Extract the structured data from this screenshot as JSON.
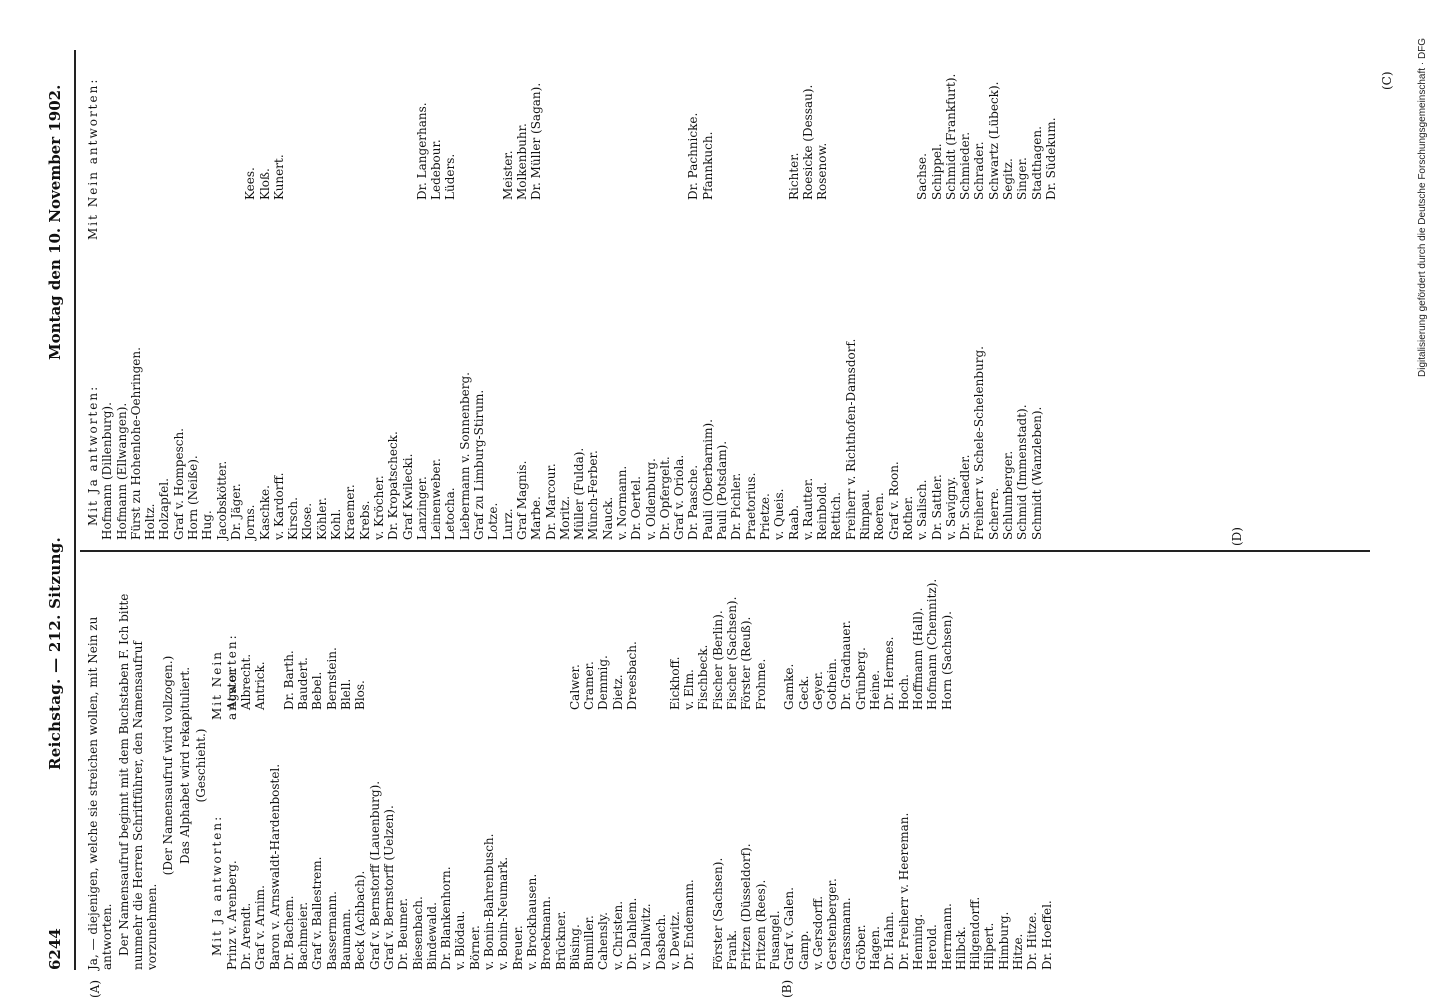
{
  "header": {
    "page_number": "6244",
    "title": "Reichstag. — 212. Sitzung.",
    "date": "Montag den 10. November 1902."
  },
  "markers": {
    "A": "(A)",
    "B": "(B)",
    "C": "(C)",
    "D": "(D)"
  },
  "left": {
    "intro_1": "Ja, — diejenigen, welche sie streichen wollen, mit Nein zu antworten.",
    "intro_2": "Der Namensaufruf beginnt mit dem Buchstaben F. Ich bitte nunmehr die Herren Schriftführer, den Namensaufruf vorzunehmen.",
    "intro_3": "(Der Namensaufruf wird vollzogen.)",
    "intro_4": "Das Alphabet wird rekapituliert.",
    "intro_5": "(Geschieht.)",
    "heading_ja": "Mit Ja antworten:",
    "heading_nein": "Mit Nein antworten:",
    "rows": [
      [
        "Prinz v. Arenberg.",
        "",
        "Agster."
      ],
      [
        "Dr. Arendt.",
        "",
        "Albrecht."
      ],
      [
        "Graf v. Arnim.",
        "",
        "Antrick."
      ],
      [
        "Baron v. Arnswaldt-Hardenbostel.",
        "",
        ""
      ],
      [
        "Dr. Bachem.",
        "",
        "Dr. Barth."
      ],
      [
        "Bachmeier.",
        "",
        "Baudert."
      ],
      [
        "Graf v. Ballestrem.",
        "",
        "Bebel."
      ],
      [
        "Bassermann.",
        "",
        "Bernstein."
      ],
      [
        "Baumann.",
        "",
        "Blell."
      ],
      [
        "Beck (Achbach).",
        "",
        "Blos."
      ],
      [
        "Graf v. Bernstorff (Lauenburg).",
        "",
        ""
      ],
      [
        "Graf v. Bernstorff (Uelzen).",
        "",
        ""
      ],
      [
        "Dr. Beumer.",
        "",
        ""
      ],
      [
        "Biesenbach.",
        "",
        ""
      ],
      [
        "Bindewald.",
        "",
        ""
      ],
      [
        "Dr. Blankenhorn.",
        "",
        ""
      ],
      [
        "v. Blödau.",
        "",
        ""
      ],
      [
        "Börner.",
        "",
        ""
      ],
      [
        "v. Bonin-Bahrenbusch.",
        "",
        ""
      ],
      [
        "v. Bonin-Neumark.",
        "",
        ""
      ],
      [
        "Breuer.",
        "",
        ""
      ],
      [
        "v. Brockhausen.",
        "",
        ""
      ],
      [
        "Broekmann.",
        "",
        ""
      ],
      [
        "Brückner.",
        "",
        ""
      ],
      [
        "Büsing.",
        "",
        "Calwer."
      ],
      [
        "Bumiller.",
        "",
        "Cramer."
      ],
      [
        "Cahensly.",
        "",
        "Demmig."
      ],
      [
        "v. Christen.",
        "",
        "Dietz."
      ],
      [
        "Dr. Dahlem.",
        "",
        "Dreesbach."
      ],
      [
        "v. Dallwitz.",
        "",
        ""
      ],
      [
        "Dasbach.",
        "",
        ""
      ],
      [
        "v. Dewitz.",
        "",
        "Eickhoff."
      ],
      [
        "Dr. Endemann.",
        "",
        "v. Elm."
      ],
      [
        "",
        "",
        "Fischbeck."
      ],
      [
        "Förster (Sachsen).",
        "",
        "Fischer (Berlin)."
      ],
      [
        "Frank.",
        "",
        "Fischer (Sachsen)."
      ],
      [
        "Fritzen (Düsseldorf).",
        "",
        "Förster (Reuß)."
      ],
      [
        "Fritzen (Rees).",
        "",
        "Frohme."
      ],
      [
        "Fusangel.",
        "",
        ""
      ],
      [
        "Graf v. Galen.",
        "",
        "Gamke."
      ],
      [
        "Gamp.",
        "",
        "Geck."
      ],
      [
        "v. Gersdorff.",
        "",
        "Geyer."
      ],
      [
        "Gerstenberger.",
        "",
        "Gothein."
      ],
      [
        "Grassmann.",
        "",
        "Dr. Gradnauer."
      ],
      [
        "Gröber.",
        "",
        "Grünberg."
      ],
      [
        "Hagen.",
        "",
        "Heine."
      ],
      [
        "Dr. Hahn.",
        "",
        "Dr. Hermes."
      ],
      [
        "Dr. Freiherr v. Heereman.",
        "",
        "Hoch."
      ],
      [
        "Henning.",
        "",
        "Hoffmann (Hall)."
      ],
      [
        "Herold.",
        "",
        "Hofmann (Chemnitz)."
      ],
      [
        "Herrmann.",
        "",
        "Horn (Sachsen)."
      ],
      [
        "Hilbck.",
        "",
        ""
      ],
      [
        "Hilgendorff.",
        "",
        ""
      ],
      [
        "Hilpert.",
        "",
        ""
      ],
      [
        "Himburg.",
        "",
        ""
      ],
      [
        "Hitze.",
        "",
        ""
      ],
      [
        "Dr. Hitze.",
        "",
        ""
      ],
      [
        "Dr. Hoeffel.",
        "",
        ""
      ]
    ]
  },
  "right": {
    "heading_ja": "Mit Ja antworten:",
    "heading_nein": "Mit Nein antworten:",
    "rows": [
      [
        "Hofmann (Dillenburg).",
        "",
        ""
      ],
      [
        "Hofmann (Ellwangen).",
        "",
        ""
      ],
      [
        "Fürst zu Hohenlohe-Oehringen.",
        "",
        ""
      ],
      [
        "Holtz.",
        "",
        ""
      ],
      [
        "Holzapfel.",
        "",
        ""
      ],
      [
        "Graf v. Hompesch.",
        "",
        ""
      ],
      [
        "Horn (Neiße).",
        "",
        ""
      ],
      [
        "Hug.",
        "",
        ""
      ],
      [
        "Jacobskötter.",
        "",
        ""
      ],
      [
        "Dr. Jäger.",
        "",
        ""
      ],
      [
        "Jorns.",
        "",
        "Kees."
      ],
      [
        "Kaschke.",
        "",
        "Kloß."
      ],
      [
        "v. Kardorff.",
        "",
        "Kunert."
      ],
      [
        "Kirsch.",
        "",
        ""
      ],
      [
        "Klose.",
        "",
        ""
      ],
      [
        "Köhler.",
        "",
        ""
      ],
      [
        "Kohl.",
        "",
        ""
      ],
      [
        "Kraemer.",
        "",
        ""
      ],
      [
        "Krebs.",
        "",
        ""
      ],
      [
        "v. Kröcher.",
        "",
        ""
      ],
      [
        "Dr. Kropatscheck.",
        "",
        ""
      ],
      [
        "Graf Kwilecki.",
        "",
        ""
      ],
      [
        "Lanzinger.",
        "",
        "Dr. Langerhans."
      ],
      [
        "Leinenweber.",
        "",
        "Ledebour."
      ],
      [
        "Letocha.",
        "",
        "Lüders."
      ],
      [
        "Liebermann v. Sonnenberg.",
        "",
        ""
      ],
      [
        "Graf zu Limburg-Stirum.",
        "",
        ""
      ],
      [
        "Lotze.",
        "",
        ""
      ],
      [
        "Lurz.",
        "",
        "Meister."
      ],
      [
        "Graf Magnis.",
        "",
        "Molkenbuhr."
      ],
      [
        "Marbe.",
        "",
        "Dr. Müller (Sagan)."
      ],
      [
        "Dr. Marcour.",
        "",
        ""
      ],
      [
        "Moritz.",
        "",
        ""
      ],
      [
        "Müller (Fulda).",
        "",
        ""
      ],
      [
        "Münch-Ferber.",
        "",
        ""
      ],
      [
        "Nauck.",
        "",
        ""
      ],
      [
        "v. Normann.",
        "",
        ""
      ],
      [
        "Dr. Oertel.",
        "",
        ""
      ],
      [
        "v. Oldenburg.",
        "",
        ""
      ],
      [
        "Dr. Opfergelt.",
        "",
        ""
      ],
      [
        "Graf v. Oriola.",
        "",
        ""
      ],
      [
        "Dr. Paasche.",
        "",
        "Dr. Pachnicke."
      ],
      [
        "Pauli (Oberbarnim).",
        "",
        "Pfannkuch."
      ],
      [
        "Pauli (Potsdam).",
        "",
        ""
      ],
      [
        "Dr. Pichler.",
        "",
        ""
      ],
      [
        "Praetorius.",
        "",
        ""
      ],
      [
        "Prietze.",
        "",
        ""
      ],
      [
        "v. Queis.",
        "",
        ""
      ],
      [
        "Raab.",
        "",
        "Richter."
      ],
      [
        "v. Rautter.",
        "",
        "Roesicke (Dessau)."
      ],
      [
        "Reinbold.",
        "",
        "Rosenow."
      ],
      [
        "Rettich.",
        "",
        ""
      ],
      [
        "Freiherr v. Richthofen-Damsdorf.",
        "",
        ""
      ],
      [
        "Rimpau.",
        "",
        ""
      ],
      [
        "Roeren.",
        "",
        ""
      ],
      [
        "Graf v. Roon.",
        "",
        ""
      ],
      [
        "Rother.",
        "",
        ""
      ],
      [
        "v. Salisch.",
        "",
        "Sachse."
      ],
      [
        "Dr. Sattler.",
        "",
        "Schippel."
      ],
      [
        "v. Savigny.",
        "",
        "Schmidt (Frankfurt)."
      ],
      [
        "Dr. Schaedler.",
        "",
        "Schmieder."
      ],
      [
        "Freiherr v. Schele-Schelenburg.",
        "",
        "Schrader."
      ],
      [
        "Scherre.",
        "",
        "Schwartz (Lübeck)."
      ],
      [
        "Schlumberger.",
        "",
        "Segitz."
      ],
      [
        "Schmid (Immenstadt).",
        "",
        "Singer."
      ],
      [
        "Schmidt (Wanzleben).",
        "",
        "Stadthagen."
      ],
      [
        "",
        "",
        "Dr. Südekum."
      ]
    ]
  },
  "side_note": "Digitalisierung gefördert durch die Deutsche Forschungsgemeinschaft · DFG"
}
